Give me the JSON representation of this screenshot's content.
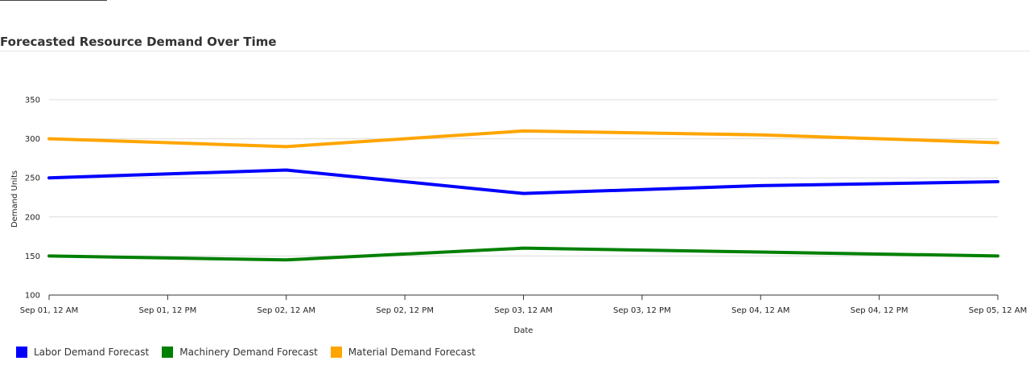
{
  "header": {
    "title": "Forecasted Resource Demand Over Time"
  },
  "chart_data": {
    "type": "line",
    "title": "Forecasted Resource Demand Over Time",
    "xlabel": "Date",
    "ylabel": "Demand Units",
    "x_ticks": [
      "Sep 01, 12 AM",
      "Sep 01, 12 PM",
      "Sep 02, 12 AM",
      "Sep 02, 12 PM",
      "Sep 03, 12 AM",
      "Sep 03, 12 PM",
      "Sep 04, 12 AM",
      "Sep 04, 12 PM",
      "Sep 05, 12 AM"
    ],
    "x": [
      "2023-09-01",
      "2023-09-02",
      "2023-09-03",
      "2023-09-04",
      "2023-09-05"
    ],
    "y_ticks": [
      100,
      150,
      200,
      250,
      300,
      350
    ],
    "ylim": [
      100,
      350
    ],
    "grid": true,
    "legend_position": "bottom-left",
    "series": [
      {
        "name": "Labor Demand Forecast",
        "color": "#0000ff",
        "values": [
          250,
          260,
          230,
          240,
          245
        ]
      },
      {
        "name": "Machinery Demand Forecast",
        "color": "#008000",
        "values": [
          150,
          145,
          160,
          155,
          150
        ]
      },
      {
        "name": "Material Demand Forecast",
        "color": "#ffa500",
        "values": [
          300,
          290,
          310,
          305,
          295
        ]
      }
    ]
  }
}
